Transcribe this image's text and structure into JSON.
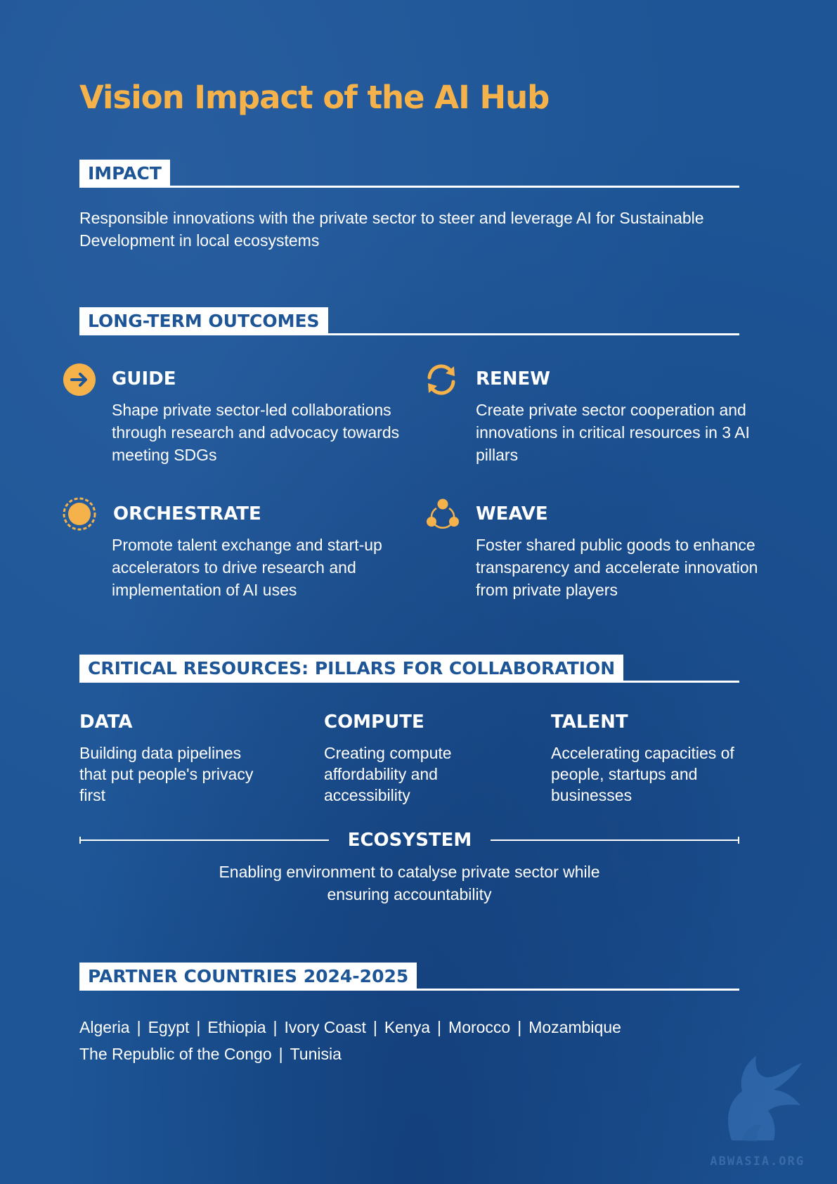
{
  "title": "Vision Impact of the AI Hub",
  "impact": {
    "label": "IMPACT",
    "text": "Responsible innovations with the private sector to steer and leverage AI for Sustainable Development in local ecosystems"
  },
  "outcomes": {
    "label": "LONG-TERM OUTCOMES",
    "items": [
      {
        "title": "GUIDE",
        "icon": "arrow-right-circle-icon",
        "text": "Shape private sector-led collaborations through research and advocacy towards meeting SDGs"
      },
      {
        "title": "RENEW",
        "icon": "refresh-cycle-icon",
        "text": "Create private sector cooperation and innovations in critical resources in 3 AI pillars"
      },
      {
        "title": "ORCHESTRATE",
        "icon": "sun-dotted-circle-icon",
        "text": "Promote talent exchange and start-up accelerators to drive research and implementation of AI uses"
      },
      {
        "title": "WEAVE",
        "icon": "three-nodes-network-icon",
        "text": "Foster shared public goods to enhance transparency and accelerate innovation from private players"
      }
    ]
  },
  "pillars": {
    "label": "CRITICAL RESOURCES: PILLARS FOR COLLABORATION",
    "items": [
      {
        "title": "DATA",
        "text": "Building data pipelines that put people's privacy first"
      },
      {
        "title": "COMPUTE",
        "text": "Creating compute affordability and accessibility"
      },
      {
        "title": "TALENT",
        "text": "Accelerating capacities of people, startups and businesses"
      }
    ],
    "ecosystem": {
      "title": "ECOSYSTEM",
      "text": "Enabling environment to catalyse private sector while ensuring accountability"
    }
  },
  "partners": {
    "label": "PARTNER COUNTRIES 2024-2025",
    "separator": "|",
    "countries": [
      "Algeria",
      "Egypt",
      "Ethiopia",
      "Ivory Coast",
      "Kenya",
      "Morocco",
      "Mozambique",
      "The Republic of the Congo",
      "Tunisia"
    ]
  },
  "watermark": {
    "text": "ABWASIA.ORG"
  },
  "colors": {
    "background": "#1d5596",
    "accent": "#f6b24a",
    "text": "#ffffff"
  }
}
